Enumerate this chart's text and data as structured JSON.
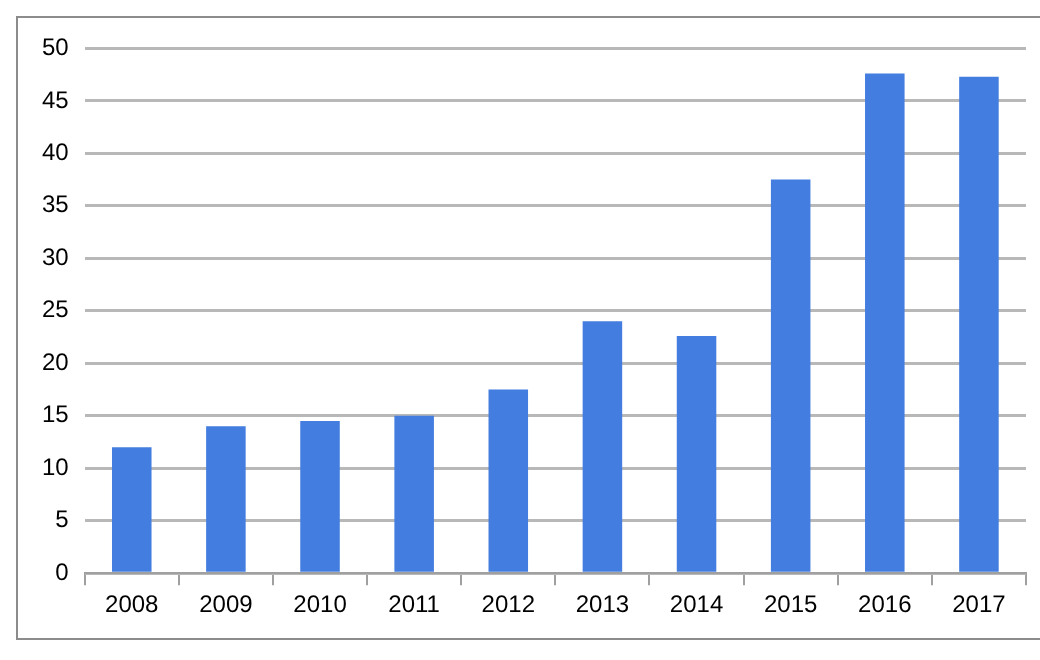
{
  "chart_data": {
    "type": "bar",
    "categories": [
      "2008",
      "2009",
      "2010",
      "2011",
      "2012",
      "2013",
      "2014",
      "2015",
      "2016",
      "2017"
    ],
    "values": [
      12,
      14,
      14.5,
      15,
      17.5,
      24,
      22.6,
      37.5,
      47.6,
      47.3
    ],
    "color": "#427ddf",
    "ylim": [
      0,
      50
    ],
    "yticks": [
      0,
      5,
      10,
      15,
      20,
      25,
      30,
      35,
      40,
      45,
      50
    ],
    "grid": "y",
    "legend": false
  }
}
